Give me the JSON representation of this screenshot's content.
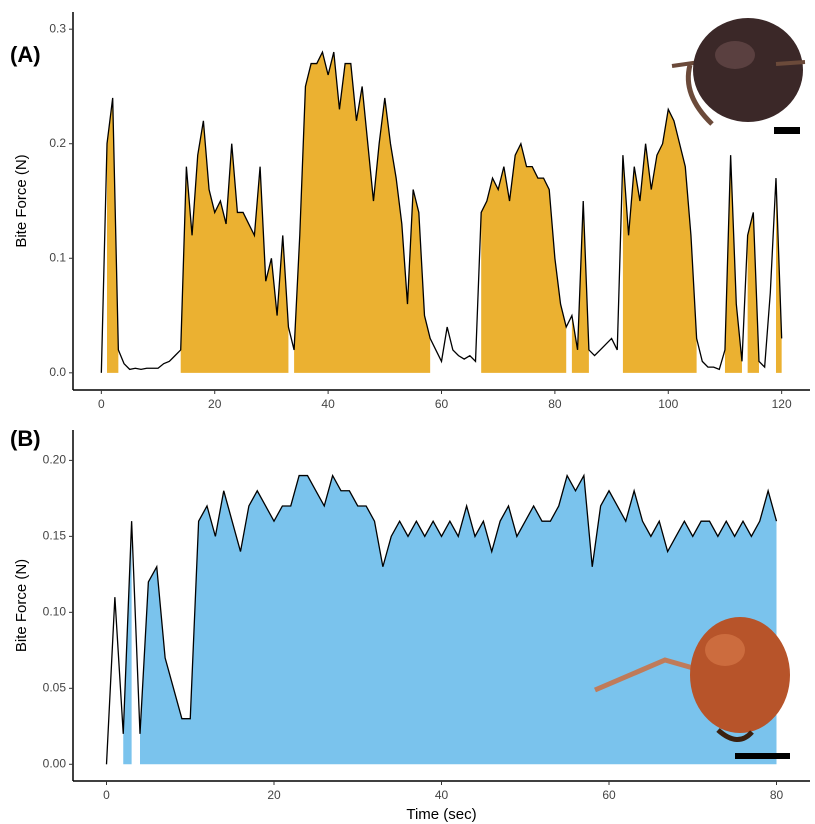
{
  "chart_data": [
    {
      "type": "line",
      "panel_label": "(A)",
      "ylabel": "Bite Force (N)",
      "line_color": "#000000",
      "fill_color": "#ebb131",
      "x": [
        0,
        1,
        2,
        3,
        4,
        5,
        6,
        7,
        8,
        9,
        10,
        11,
        12,
        13,
        14,
        15,
        16,
        17,
        18,
        19,
        20,
        21,
        22,
        23,
        24,
        25,
        26,
        27,
        28,
        29,
        30,
        31,
        32,
        33,
        34,
        35,
        36,
        37,
        38,
        39,
        40,
        41,
        42,
        43,
        44,
        45,
        46,
        47,
        48,
        49,
        50,
        51,
        52,
        53,
        54,
        55,
        56,
        57,
        58,
        59,
        60,
        61,
        62,
        63,
        64,
        65,
        66,
        67,
        68,
        69,
        70,
        71,
        72,
        73,
        74,
        75,
        76,
        77,
        78,
        79,
        80,
        81,
        82,
        83,
        84,
        85,
        86,
        87,
        88,
        89,
        90,
        91,
        92,
        93,
        94,
        95,
        96,
        97,
        98,
        99,
        100,
        101,
        102,
        103,
        104,
        105,
        106,
        107,
        108,
        109,
        110,
        111,
        112,
        113,
        114,
        115,
        116,
        117,
        118,
        119,
        120
      ],
      "values": [
        0,
        0.2,
        0.24,
        0.02,
        0.008,
        0.003,
        0.004,
        0.003,
        0.004,
        0.004,
        0.004,
        0.008,
        0.01,
        0.015,
        0.02,
        0.18,
        0.12,
        0.19,
        0.22,
        0.16,
        0.14,
        0.15,
        0.13,
        0.2,
        0.14,
        0.14,
        0.13,
        0.12,
        0.18,
        0.08,
        0.1,
        0.05,
        0.12,
        0.04,
        0.02,
        0.12,
        0.25,
        0.27,
        0.27,
        0.28,
        0.26,
        0.28,
        0.23,
        0.27,
        0.27,
        0.22,
        0.25,
        0.2,
        0.15,
        0.2,
        0.24,
        0.2,
        0.17,
        0.13,
        0.06,
        0.16,
        0.14,
        0.05,
        0.03,
        0.02,
        0.01,
        0.04,
        0.02,
        0.015,
        0.012,
        0.015,
        0.01,
        0.14,
        0.15,
        0.17,
        0.16,
        0.18,
        0.15,
        0.19,
        0.2,
        0.18,
        0.18,
        0.17,
        0.17,
        0.16,
        0.1,
        0.06,
        0.04,
        0.05,
        0.02,
        0.15,
        0.02,
        0.015,
        0.02,
        0.025,
        0.03,
        0.02,
        0.19,
        0.12,
        0.18,
        0.15,
        0.2,
        0.16,
        0.19,
        0.2,
        0.23,
        0.22,
        0.2,
        0.18,
        0.12,
        0.03,
        0.01,
        0.005,
        0.005,
        0.003,
        0.02,
        0.19,
        0.06,
        0.01,
        0.12,
        0.14,
        0.01,
        0.005,
        0.07,
        0.17,
        0.03
      ],
      "shaded_intervals": [
        [
          1,
          3
        ],
        [
          14,
          33
        ],
        [
          34,
          58
        ],
        [
          67,
          82
        ],
        [
          83,
          86
        ],
        [
          92,
          105
        ],
        [
          110,
          113
        ],
        [
          114,
          116
        ],
        [
          119,
          120
        ]
      ],
      "xlim": [
        -5,
        125
      ],
      "xticks": [
        0,
        20,
        40,
        60,
        80,
        100,
        120
      ],
      "ylim": [
        -0.015,
        0.315
      ],
      "yticks": [
        {
          "value": 0,
          "label": "0.0"
        },
        0.1,
        0.2,
        0.3
      ]
    },
    {
      "type": "line",
      "panel_label": "(B)",
      "ylabel": "Bite Force (N)",
      "xlabel": "Time (sec)",
      "line_color": "#000000",
      "fill_color": "#7ac3ed",
      "x": [
        0,
        1,
        2,
        3,
        4,
        5,
        6,
        7,
        8,
        9,
        10,
        11,
        12,
        13,
        14,
        15,
        16,
        17,
        18,
        19,
        20,
        21,
        22,
        23,
        24,
        25,
        26,
        27,
        28,
        29,
        30,
        31,
        32,
        33,
        34,
        35,
        36,
        37,
        38,
        39,
        40,
        41,
        42,
        43,
        44,
        45,
        46,
        47,
        48,
        49,
        50,
        51,
        52,
        53,
        54,
        55,
        56,
        57,
        58,
        59,
        60,
        61,
        62,
        63,
        64,
        65,
        66,
        67,
        68,
        69,
        70,
        71,
        72,
        73,
        74,
        75,
        76,
        77,
        78,
        79,
        80
      ],
      "values": [
        0,
        0.11,
        0.02,
        0.16,
        0.02,
        0.12,
        0.13,
        0.07,
        0.05,
        0.03,
        0.03,
        0.16,
        0.17,
        0.15,
        0.18,
        0.16,
        0.14,
        0.17,
        0.18,
        0.17,
        0.16,
        0.17,
        0.17,
        0.19,
        0.19,
        0.18,
        0.17,
        0.19,
        0.18,
        0.18,
        0.17,
        0.17,
        0.16,
        0.13,
        0.15,
        0.16,
        0.15,
        0.16,
        0.15,
        0.16,
        0.15,
        0.16,
        0.15,
        0.17,
        0.15,
        0.16,
        0.14,
        0.16,
        0.17,
        0.15,
        0.16,
        0.17,
        0.16,
        0.16,
        0.17,
        0.19,
        0.18,
        0.19,
        0.13,
        0.17,
        0.18,
        0.17,
        0.16,
        0.18,
        0.16,
        0.15,
        0.16,
        0.14,
        0.15,
        0.16,
        0.15,
        0.16,
        0.16,
        0.15,
        0.16,
        0.15,
        0.16,
        0.15,
        0.16,
        0.18,
        0.16
      ],
      "shaded_intervals": [
        [
          2,
          3
        ],
        [
          4,
          80
        ]
      ],
      "xlim": [
        -4,
        84
      ],
      "xticks": [
        0,
        20,
        40,
        60,
        80
      ],
      "ylim": [
        -0.011,
        0.22
      ],
      "yticks": [
        {
          "value": 0,
          "label": "0.00"
        },
        {
          "value": 0.05,
          "label": "0.05"
        },
        {
          "value": 0.1,
          "label": "0.10"
        },
        {
          "value": 0.15,
          "label": "0.15"
        },
        {
          "value": 0.2,
          "label": "0.20"
        }
      ]
    }
  ]
}
